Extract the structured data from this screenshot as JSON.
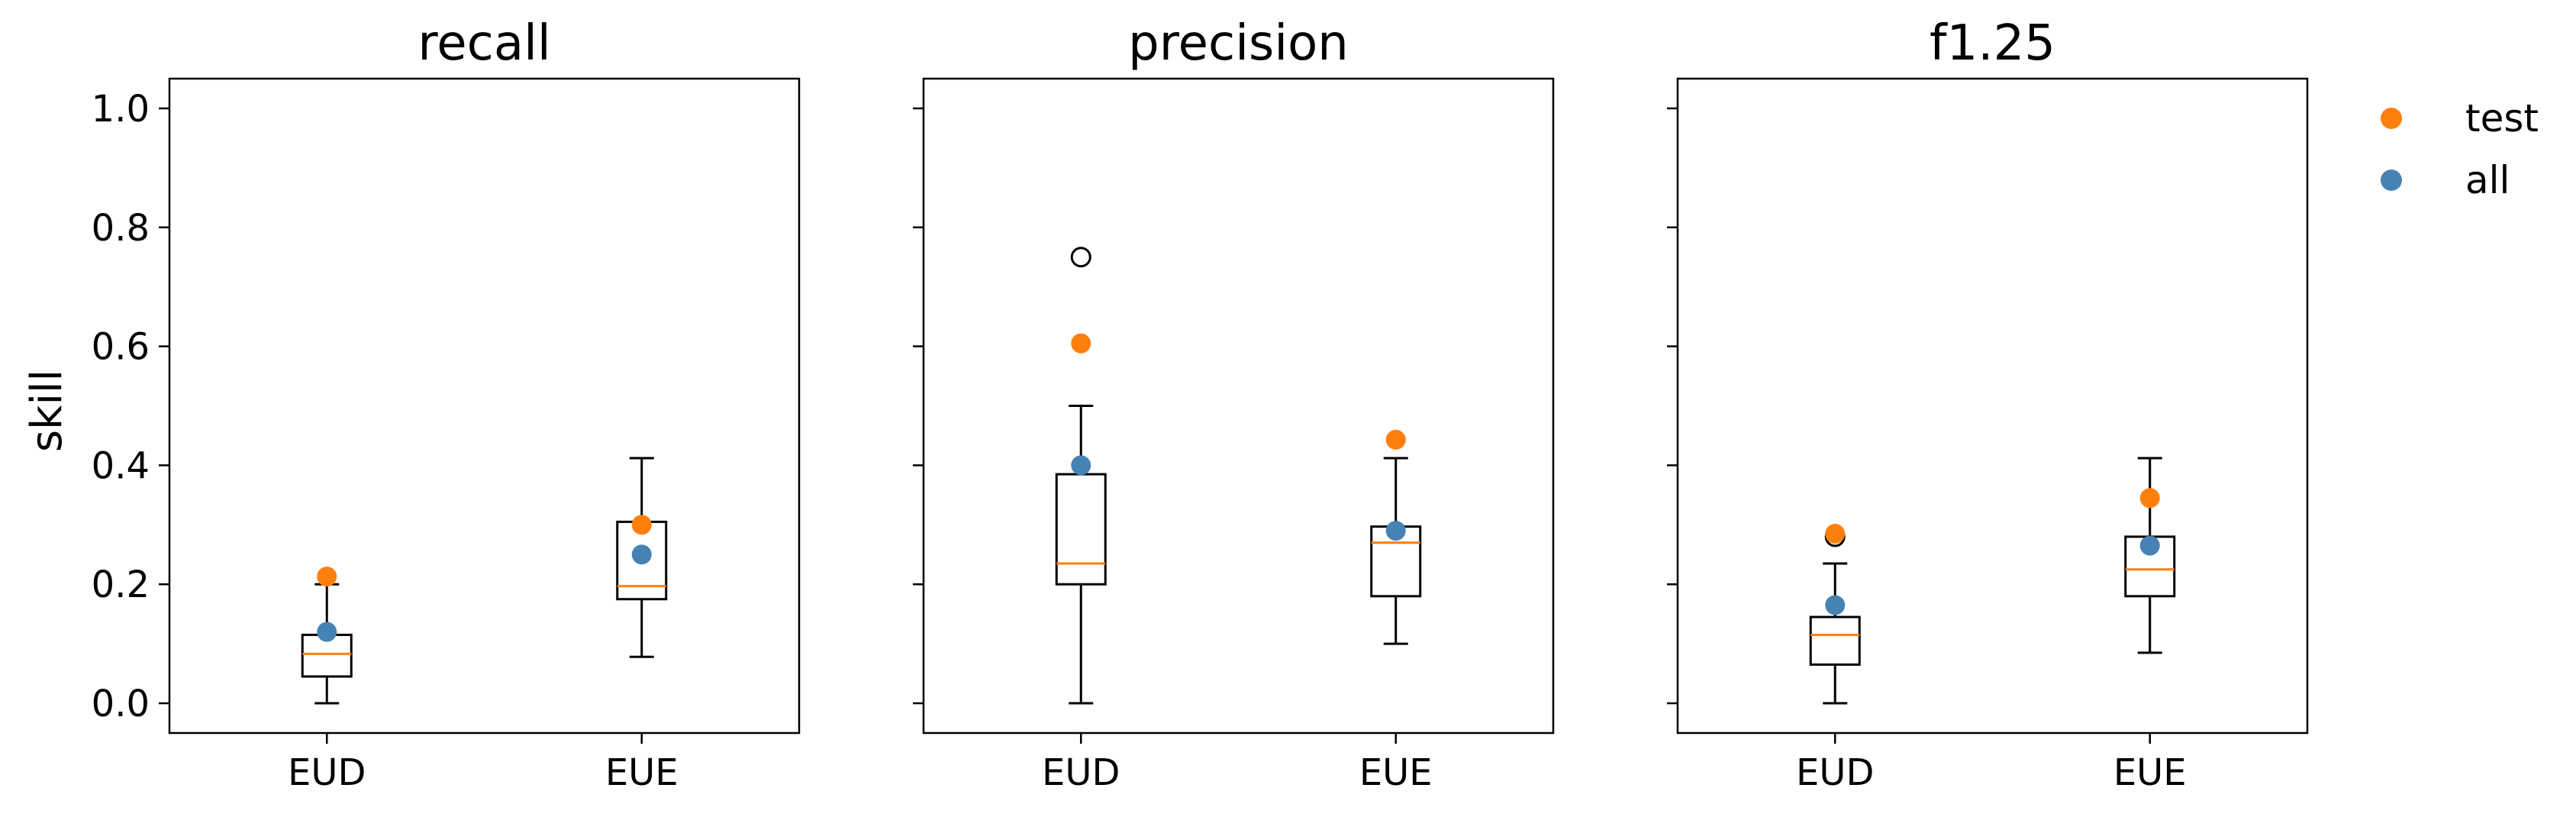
{
  "chart_data": {
    "type": "box",
    "ylabel": "skill",
    "ylim": [
      -0.05,
      1.05
    ],
    "yticks": [
      0.0,
      0.2,
      0.4,
      0.6,
      0.8,
      1.0
    ],
    "ytick_labels": [
      "0.0",
      "0.2",
      "0.4",
      "0.6",
      "0.8",
      "1.0"
    ],
    "categories": [
      "EUD",
      "EUE"
    ],
    "legend": [
      {
        "name": "test",
        "color": "#ff7f0e"
      },
      {
        "name": "all",
        "color": "#4682b4"
      }
    ],
    "box_color": "#000000",
    "median_color": "#ff7f0e",
    "panels": [
      {
        "title": "recall",
        "boxes": [
          {
            "category": "EUD",
            "whisker_low": 0.0,
            "q1": 0.045,
            "median": 0.083,
            "q3": 0.115,
            "whisker_high": 0.2,
            "outliers": []
          },
          {
            "category": "EUE",
            "whisker_low": 0.078,
            "q1": 0.175,
            "median": 0.197,
            "q3": 0.305,
            "whisker_high": 0.412,
            "outliers": []
          }
        ],
        "points": [
          {
            "series": "test",
            "category": "EUD",
            "y": 0.213
          },
          {
            "series": "all",
            "category": "EUD",
            "y": 0.12
          },
          {
            "series": "test",
            "category": "EUE",
            "y": 0.3
          },
          {
            "series": "all",
            "category": "EUE",
            "y": 0.25
          }
        ]
      },
      {
        "title": "precision",
        "boxes": [
          {
            "category": "EUD",
            "whisker_low": 0.0,
            "q1": 0.2,
            "median": 0.235,
            "q3": 0.385,
            "whisker_high": 0.5,
            "outliers": [
              0.75
            ]
          },
          {
            "category": "EUE",
            "whisker_low": 0.1,
            "q1": 0.18,
            "median": 0.27,
            "q3": 0.297,
            "whisker_high": 0.412,
            "outliers": []
          }
        ],
        "points": [
          {
            "series": "test",
            "category": "EUD",
            "y": 0.605
          },
          {
            "series": "all",
            "category": "EUD",
            "y": 0.4
          },
          {
            "series": "test",
            "category": "EUE",
            "y": 0.443
          },
          {
            "series": "all",
            "category": "EUE",
            "y": 0.29
          }
        ]
      },
      {
        "title": "f1.25",
        "boxes": [
          {
            "category": "EUD",
            "whisker_low": 0.0,
            "q1": 0.065,
            "median": 0.115,
            "q3": 0.145,
            "whisker_high": 0.235,
            "outliers": [
              0.28
            ]
          },
          {
            "category": "EUE",
            "whisker_low": 0.085,
            "q1": 0.18,
            "median": 0.225,
            "q3": 0.28,
            "whisker_high": 0.412,
            "outliers": []
          }
        ],
        "points": [
          {
            "series": "test",
            "category": "EUD",
            "y": 0.285
          },
          {
            "series": "all",
            "category": "EUD",
            "y": 0.165
          },
          {
            "series": "test",
            "category": "EUE",
            "y": 0.345
          },
          {
            "series": "all",
            "category": "EUE",
            "y": 0.265
          }
        ]
      }
    ]
  }
}
